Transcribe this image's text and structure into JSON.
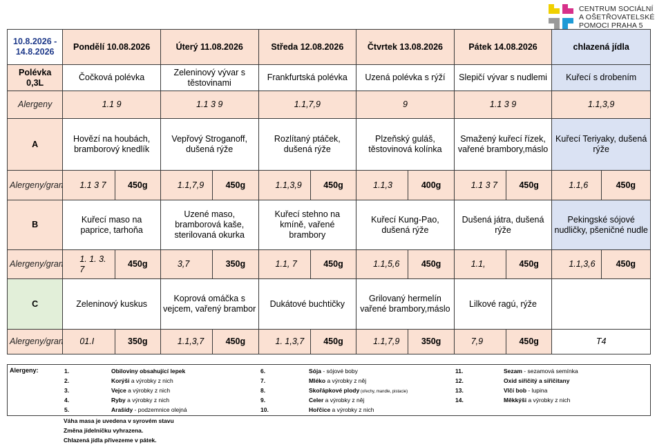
{
  "logo": {
    "lines": [
      "CENTRUM SOCIÁLNÍ",
      "A OŠETŘOVATELSKÉ",
      "POMOCI PRAHA 5"
    ],
    "colors": [
      "#f0d000",
      "#d7308a",
      "#9a9a9a",
      "#1e9bd7"
    ]
  },
  "header": {
    "date_range": "10.8.2026 - 14.8.2026",
    "days": [
      "Pondělí 10.08.2026",
      "Úterý 11.08.2026",
      "Středa 12.08.2026",
      "Čtvrtek 13.08.2026",
      "Pátek 14.08.2026",
      "chlazená jídla"
    ]
  },
  "soup": {
    "label": "Polévka 0,3L",
    "items": [
      "Čočková polévka",
      "Zeleninový vývar s těstovinami",
      "Frankfurtská polévka",
      "Uzená polévka s rýží",
      "Slepičí vývar s nudlemi",
      "Kuřecí s drobením"
    ],
    "allergens_label": "Alergeny",
    "allergens": [
      "1.1 9",
      "1.1  3  9",
      "1.1,7,9",
      "9",
      "1.1  3  9",
      "1.1,3,9"
    ]
  },
  "rows": [
    {
      "label": "A",
      "meals": [
        "Hovězí na houbách, bramborový knedlík",
        "Vepřový Stroganoff, dušená rýže",
        "Rozlítaný ptáček, dušená rýže",
        "Plzeňský guláš, těstovinová kolínka",
        "Smažený kuřecí řízek, vařené brambory,máslo",
        "Kuřecí Teriyaky, dušená rýže"
      ],
      "meta_label": "Alergeny/gramáž",
      "allergens": [
        "1.1 3 7",
        "1.1,7,9",
        "1.1,3,9",
        "1.1,3",
        "1.1  3  7",
        "1.1,6"
      ],
      "grams": [
        "450g",
        "450g",
        "450g",
        "400g",
        "450g",
        "450g"
      ]
    },
    {
      "label": "B",
      "meals": [
        "Kuřecí maso na paprice, tarhoňa",
        "Uzené maso, bramborová kaše, sterilovaná okurka",
        "Kuřecí stehno na kmíně, vařené brambory",
        "Kuřecí Kung-Pao, dušená rýže",
        "Dušená játra, dušená rýže",
        "Pekingské sójové nudličky, pšeničné nudle"
      ],
      "meta_label": "Alergeny/gramáž",
      "allergens": [
        "1. 1. 3. 7",
        "3,7",
        "1.1, 7",
        "1.1,5,6",
        "1.1,",
        "1.1,3,6"
      ],
      "grams": [
        "450g",
        "350g",
        "450g",
        "450g",
        "450g",
        "450g"
      ]
    },
    {
      "label": "C",
      "meals": [
        "Zeleninový kuskus",
        "Koprová omáčka s vejcem, vařený brambor",
        "Dukátové buchtičky",
        "Grilovaný hermelín vařené brambory,máslo",
        "Lilkové ragú, rýže",
        ""
      ],
      "meta_label": "Alergeny/gramáž",
      "allergens": [
        "01.I",
        "1.1,3,7",
        "1. 1,3,7",
        "1.1,7,9",
        "7,9",
        "T4"
      ],
      "grams": [
        "350g",
        "450g",
        "450g",
        "350g",
        "450g",
        ""
      ]
    }
  ],
  "legend": {
    "title": "Alergeny:",
    "items": [
      {
        "num": "1.",
        "name": "Obiloviny obsahující lepek",
        "desc": ""
      },
      {
        "num": "2.",
        "name": "Korýši",
        "desc": " a výrobky z nich"
      },
      {
        "num": "3.",
        "name": "Vejce",
        "desc": " a výrobky z nich"
      },
      {
        "num": "4.",
        "name": "Ryby",
        "desc": " a výrobky z nich"
      },
      {
        "num": "5.",
        "name": "Arašídy",
        "desc": " - podzemnice olejná"
      },
      {
        "num": "6.",
        "name": "Sója",
        "desc": " - sójové boby"
      },
      {
        "num": "7.",
        "name": "Mléko",
        "desc": " a výrobky z něj"
      },
      {
        "num": "8.",
        "name": "Skořápkové plody",
        "desc": " (ořechy, mandle, pistacie)"
      },
      {
        "num": "9.",
        "name": "Celer",
        "desc": " a výrobky z něj"
      },
      {
        "num": "10.",
        "name": "Hořčice",
        "desc": " a výrobky z nich"
      },
      {
        "num": "11.",
        "name": "Sezam",
        "desc": " - sezamová semínka"
      },
      {
        "num": "12.",
        "name": "Oxid siřičitý a siřičitany",
        "desc": ""
      },
      {
        "num": "13.",
        "name": "Vlčí bob",
        "desc": " - lupina"
      },
      {
        "num": "14.",
        "name": "Měkkýši",
        "desc": " a výrobky z nich"
      }
    ]
  },
  "notes": [
    "Váha masa je uvedena v syrovém stavu",
    "Změna jídelníčku vyhrazena.",
    "Chlazená jídla přivezeme v pátek."
  ]
}
